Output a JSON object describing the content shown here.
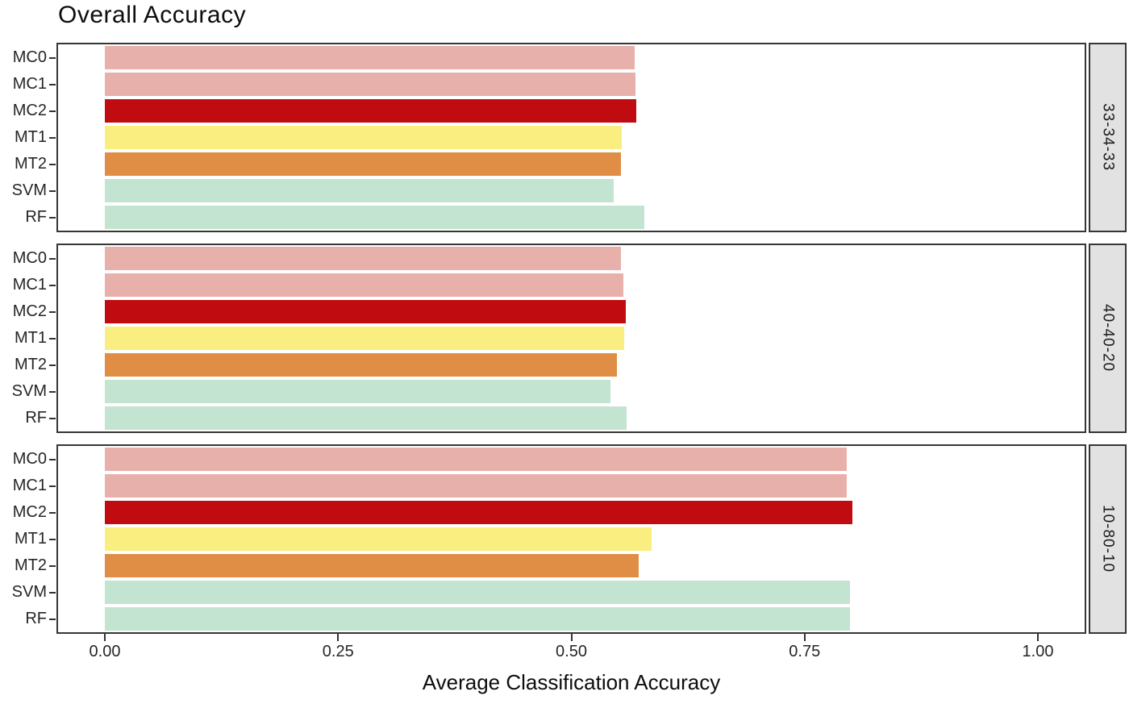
{
  "title": "Overall Accuracy",
  "chart_data": {
    "type": "bar",
    "orientation": "horizontal",
    "title": "Overall Accuracy",
    "xlabel": "Average Classification Accuracy",
    "ylabel": "",
    "grid": false,
    "legend": "none",
    "xlim": [
      -0.05,
      1.05
    ],
    "x_ticks": [
      0.0,
      0.25,
      0.5,
      0.75,
      1.0
    ],
    "x_tick_labels": [
      "0.00",
      "0.25",
      "0.50",
      "0.75",
      "1.00"
    ],
    "categories": [
      "MC0",
      "MC1",
      "MC2",
      "MT1",
      "MT2",
      "SVM",
      "RF"
    ],
    "bar_colors": [
      "#e7b0ab",
      "#e7b0ab",
      "#c00c11",
      "#f9ee7f",
      "#e08d45",
      "#c3e4d1",
      "#c3e4d1"
    ],
    "facets": [
      {
        "label": "33-34-33",
        "values": [
          0.568,
          0.569,
          0.57,
          0.554,
          0.553,
          0.545,
          0.578
        ]
      },
      {
        "label": "40-40-20",
        "values": [
          0.553,
          0.556,
          0.558,
          0.557,
          0.549,
          0.542,
          0.559
        ]
      },
      {
        "label": "10-80-10",
        "values": [
          0.795,
          0.795,
          0.801,
          0.586,
          0.572,
          0.799,
          0.799
        ]
      }
    ],
    "style": {
      "panel_border_color": "#363636",
      "strip_background": "#e2e2e2",
      "axis_text_color": "#262626",
      "title_color": "#0d0d0d",
      "background": "#ffffff"
    }
  }
}
